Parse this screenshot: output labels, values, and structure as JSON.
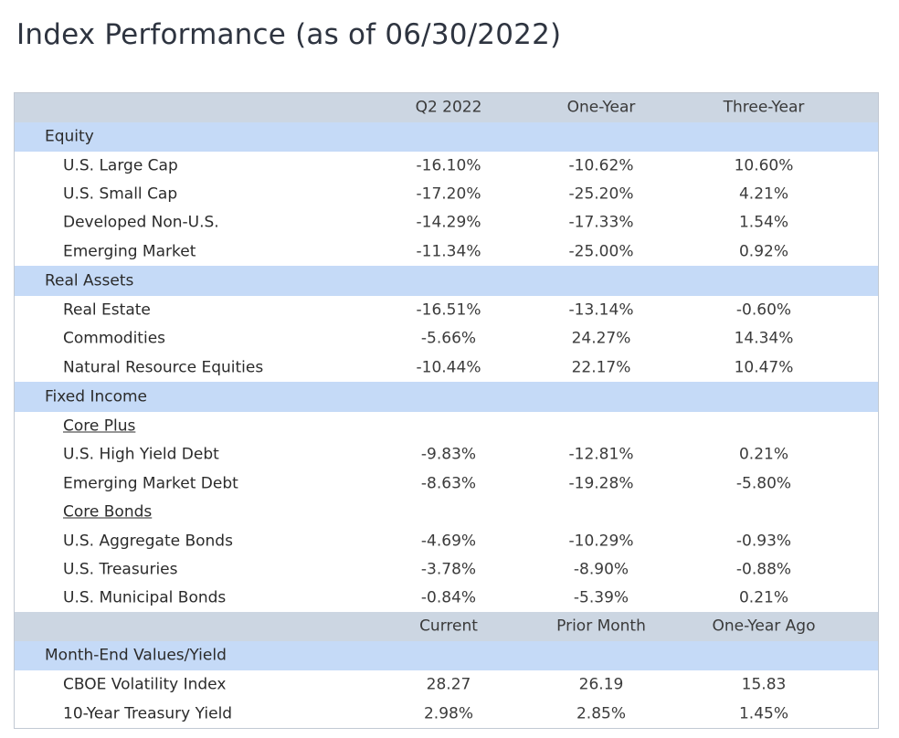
{
  "title": "Index Performance (as of 06/30/2022)",
  "header": {
    "col1": "Q2 2022",
    "col2": "One-Year",
    "col3": "Three-Year"
  },
  "equity": {
    "label": "Equity",
    "rows": [
      {
        "name": "U.S. Large Cap",
        "q2": "-16.10%",
        "one": "-10.62%",
        "three": "10.60%"
      },
      {
        "name": "U.S. Small Cap",
        "q2": "-17.20%",
        "one": "-25.20%",
        "three": "4.21%"
      },
      {
        "name": "Developed Non-U.S.",
        "q2": "-14.29%",
        "one": "-17.33%",
        "three": "1.54%"
      },
      {
        "name": "Emerging Market",
        "q2": "-11.34%",
        "one": "-25.00%",
        "three": "0.92%"
      }
    ]
  },
  "real_assets": {
    "label": "Real Assets",
    "rows": [
      {
        "name": "Real Estate",
        "q2": "-16.51%",
        "one": "-13.14%",
        "three": "-0.60%"
      },
      {
        "name": "Commodities",
        "q2": "-5.66%",
        "one": "24.27%",
        "three": "14.34%"
      },
      {
        "name": "Natural Resource Equities",
        "q2": "-10.44%",
        "one": "22.17%",
        "three": "10.47%"
      }
    ]
  },
  "fixed_income": {
    "label": "Fixed Income",
    "core_plus": {
      "label": "Core Plus",
      "rows": [
        {
          "name": "U.S. High Yield Debt",
          "q2": "-9.83%",
          "one": "-12.81%",
          "three": "0.21%"
        },
        {
          "name": "Emerging Market Debt",
          "q2": "-8.63%",
          "one": "-19.28%",
          "three": "-5.80%"
        }
      ]
    },
    "core_bonds": {
      "label": "Core Bonds",
      "rows": [
        {
          "name": "U.S. Aggregate Bonds",
          "q2": "-4.69%",
          "one": "-10.29%",
          "three": "-0.93%"
        },
        {
          "name": "U.S. Treasuries",
          "q2": "-3.78%",
          "one": "-8.90%",
          "three": "-0.88%"
        },
        {
          "name": "U.S. Municipal Bonds",
          "q2": "-0.84%",
          "one": "-5.39%",
          "three": "0.21%"
        }
      ]
    }
  },
  "header2": {
    "col1": "Current",
    "col2": "Prior Month",
    "col3": "One-Year Ago"
  },
  "month_end": {
    "label": "Month-End Values/Yield",
    "rows": [
      {
        "name": "CBOE Volatility Index",
        "current": "28.27",
        "prior": "26.19",
        "year_ago": "15.83"
      },
      {
        "name": "10-Year Treasury Yield",
        "current": "2.98%",
        "prior": "2.85%",
        "year_ago": "1.45%"
      }
    ]
  },
  "colors": {
    "header_bg": "#ccd6e2",
    "section_bg": "#c5daf7"
  }
}
